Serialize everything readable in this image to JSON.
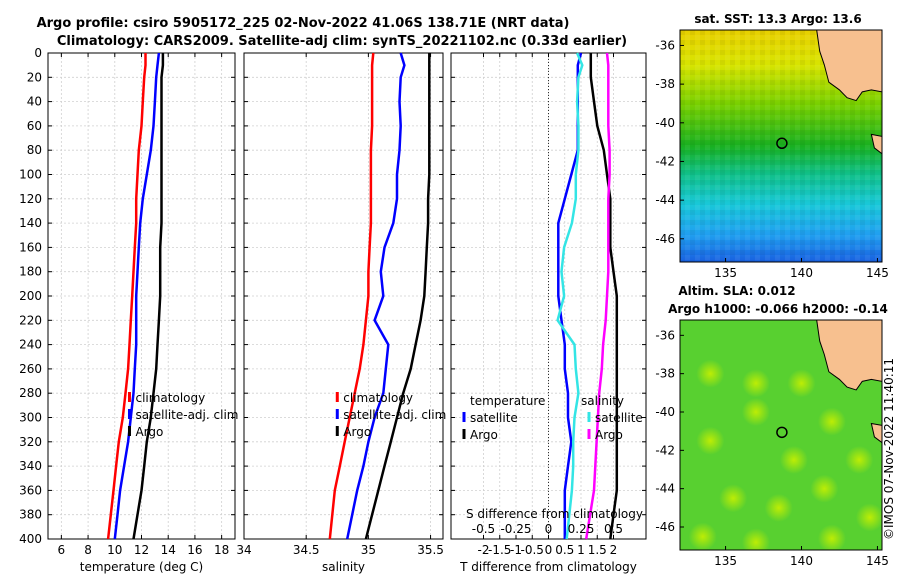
{
  "header": {
    "line1": "Argo profile: csiro 5905172_225 02-Nov-2022 41.06S 138.71E (NRT data)",
    "line2": "Climatology: CARS2009. Satellite-adj clim: synTS_20221102.nc (0.33d earlier)"
  },
  "watermark": "©IMOS 07-Nov-2022 11:40:11",
  "colors": {
    "red": "#ff0000",
    "blue": "#0000ff",
    "black": "#000000",
    "cyan": "#33e5e5",
    "magenta": "#ff00ff",
    "land": "#f7c08f"
  },
  "depth_axis": {
    "ticks": [
      "0",
      "20",
      "40",
      "60",
      "80",
      "100",
      "120",
      "140",
      "160",
      "180",
      "200",
      "220",
      "240",
      "260",
      "280",
      "300",
      "320",
      "340",
      "360",
      "380",
      "400"
    ],
    "values": [
      0,
      20,
      40,
      60,
      80,
      100,
      120,
      140,
      160,
      180,
      200,
      220,
      240,
      260,
      280,
      300,
      320,
      340,
      360,
      380,
      400
    ],
    "ylim": [
      0,
      400
    ]
  },
  "chart_data": [
    {
      "type": "line",
      "xlabel": "temperature (deg C)",
      "xlim": [
        5,
        19
      ],
      "xticks": [
        6,
        8,
        10,
        12,
        14,
        16,
        18
      ],
      "xtick_labels": [
        "6",
        "8",
        "10",
        "12",
        "14",
        "16",
        "18"
      ],
      "depth": [
        0,
        10,
        20,
        40,
        60,
        80,
        100,
        120,
        140,
        160,
        180,
        200,
        220,
        240,
        260,
        280,
        300,
        320,
        340,
        360,
        380,
        400
      ],
      "series": [
        {
          "name": "climatology",
          "color": "#ff0000",
          "values": [
            12.3,
            12.3,
            12.2,
            12.1,
            12.0,
            11.8,
            11.7,
            11.6,
            11.6,
            11.5,
            11.4,
            11.3,
            11.2,
            11.1,
            11.0,
            10.8,
            10.6,
            10.3,
            10.1,
            9.9,
            9.7,
            9.5
          ]
        },
        {
          "name": "satellite-adj. clim",
          "color": "#0000ff",
          "values": [
            13.3,
            13.2,
            13.1,
            13.0,
            12.9,
            12.7,
            12.4,
            12.1,
            11.9,
            11.8,
            11.7,
            11.6,
            11.6,
            11.6,
            11.5,
            11.4,
            11.2,
            11.0,
            10.7,
            10.4,
            10.2,
            10.0
          ]
        },
        {
          "name": "Argo",
          "color": "#000000",
          "values": [
            13.6,
            13.6,
            13.5,
            13.5,
            13.5,
            13.5,
            13.5,
            13.5,
            13.5,
            13.4,
            13.4,
            13.4,
            13.3,
            13.2,
            13.1,
            12.9,
            12.7,
            12.4,
            12.2,
            12.0,
            11.7,
            11.4
          ]
        }
      ],
      "legend": [
        "climatology",
        "satellite-adj. clim",
        "Argo"
      ]
    },
    {
      "type": "line",
      "xlabel": "salinity",
      "xlim": [
        34.0,
        35.6
      ],
      "xticks": [
        34.0,
        34.5,
        35.0,
        35.5
      ],
      "xtick_labels": [
        "34",
        "34.5",
        "35",
        "35.5"
      ],
      "depth": [
        0,
        10,
        20,
        40,
        60,
        80,
        100,
        120,
        140,
        160,
        180,
        200,
        220,
        240,
        260,
        280,
        300,
        320,
        340,
        360,
        380,
        400
      ],
      "series": [
        {
          "name": "climatology",
          "color": "#ff0000",
          "values": [
            35.04,
            35.03,
            35.03,
            35.03,
            35.03,
            35.02,
            35.02,
            35.02,
            35.02,
            35.01,
            35.0,
            35.0,
            34.98,
            34.96,
            34.93,
            34.89,
            34.85,
            34.81,
            34.77,
            34.73,
            34.71,
            34.69
          ]
        },
        {
          "name": "satellite-adj. clim",
          "color": "#0000ff",
          "values": [
            35.26,
            35.29,
            35.26,
            35.25,
            35.26,
            35.25,
            35.23,
            35.23,
            35.2,
            35.13,
            35.1,
            35.12,
            35.05,
            35.16,
            35.14,
            35.12,
            35.05,
            35.0,
            34.96,
            34.91,
            34.87,
            34.83
          ]
        },
        {
          "name": "Argo",
          "color": "#000000",
          "values": [
            35.49,
            35.49,
            35.49,
            35.49,
            35.49,
            35.49,
            35.49,
            35.48,
            35.48,
            35.47,
            35.46,
            35.45,
            35.42,
            35.38,
            35.34,
            35.28,
            35.23,
            35.18,
            35.13,
            35.08,
            35.03,
            34.98
          ]
        }
      ],
      "legend": [
        "climatology",
        "satellite-adj. clim",
        "Argo"
      ]
    },
    {
      "type": "line",
      "xlabel": "T difference from climatology",
      "xlabel_top": "S difference from climatology",
      "xlim": [
        -3,
        3
      ],
      "xticks": [
        -2,
        -1.5,
        -1,
        -0.5,
        0,
        0.5,
        1,
        1.5,
        2
      ],
      "xtick_labels": [
        "-2",
        "-1.5",
        "-1",
        "-0.5",
        "0",
        "0.5",
        "1",
        "1.5",
        "2"
      ],
      "s_xticks": [
        -0.5,
        -0.25,
        0,
        0.25,
        0.5
      ],
      "s_xtick_labels": [
        "-0.5",
        "-0.25",
        "0",
        "0.25",
        "0.5"
      ],
      "depth": [
        0,
        10,
        20,
        40,
        60,
        80,
        100,
        120,
        140,
        160,
        180,
        200,
        220,
        240,
        260,
        280,
        300,
        320,
        340,
        360,
        380,
        400
      ],
      "series": [
        {
          "name": "temperature satellite",
          "color": "#0000ff",
          "values": [
            1.0,
            0.9,
            0.9,
            0.9,
            0.9,
            0.9,
            0.7,
            0.5,
            0.3,
            0.3,
            0.3,
            0.3,
            0.4,
            0.5,
            0.5,
            0.6,
            0.6,
            0.7,
            0.6,
            0.5,
            0.5,
            0.5
          ]
        },
        {
          "name": "temperature Argo",
          "color": "#000000",
          "values": [
            1.3,
            1.3,
            1.3,
            1.4,
            1.5,
            1.7,
            1.8,
            1.9,
            1.9,
            1.9,
            2.0,
            2.1,
            2.1,
            2.1,
            2.1,
            2.1,
            2.1,
            2.1,
            2.1,
            2.1,
            2.0,
            1.9
          ]
        },
        {
          "name": "salinity satellite",
          "color": "#33e5e5",
          "values": [
            0.22,
            0.26,
            0.23,
            0.22,
            0.23,
            0.23,
            0.21,
            0.21,
            0.18,
            0.12,
            0.1,
            0.12,
            0.07,
            0.2,
            0.21,
            0.23,
            0.2,
            0.19,
            0.19,
            0.18,
            0.16,
            0.14
          ]
        },
        {
          "name": "salinity Argo",
          "color": "#ff00ff",
          "values": [
            0.45,
            0.46,
            0.46,
            0.46,
            0.46,
            0.47,
            0.47,
            0.46,
            0.46,
            0.46,
            0.46,
            0.45,
            0.44,
            0.42,
            0.41,
            0.39,
            0.38,
            0.37,
            0.36,
            0.35,
            0.32,
            0.29
          ]
        }
      ],
      "legend_left_title": "temperature",
      "legend_left": [
        "satellite",
        "Argo"
      ],
      "legend_right_title": "salinity",
      "legend_right": [
        "satellite",
        "Argo"
      ]
    },
    {
      "type": "heatmap",
      "title": "sat. SST: 13.3 Argo: 13.6",
      "xlim": [
        132,
        145.3
      ],
      "ylim": [
        -47.2,
        -35.2
      ],
      "xticks": [
        135,
        140,
        145
      ],
      "xtick_labels": [
        "135",
        "140",
        "145"
      ],
      "yticks": [
        -36,
        -38,
        -40,
        -42,
        -44,
        -46
      ],
      "ytick_labels": [
        "-36",
        "-38",
        "-40",
        "-42",
        "-44",
        "-46"
      ],
      "profile_location": {
        "lon": 138.71,
        "lat": -41.06
      }
    },
    {
      "type": "heatmap",
      "title1": "Altim. SLA: 0.012",
      "title2": "Argo h1000: -0.066 h2000: -0.14",
      "xlim": [
        132,
        145.3
      ],
      "ylim": [
        -47.2,
        -35.2
      ],
      "xticks": [
        135,
        140,
        145
      ],
      "xtick_labels": [
        "135",
        "140",
        "145"
      ],
      "yticks": [
        -36,
        -38,
        -40,
        -42,
        -44,
        -46
      ],
      "ytick_labels": [
        "-36",
        "-38",
        "-40",
        "-42",
        "-44",
        "-46"
      ],
      "profile_location": {
        "lon": 138.71,
        "lat": -41.06
      }
    }
  ]
}
